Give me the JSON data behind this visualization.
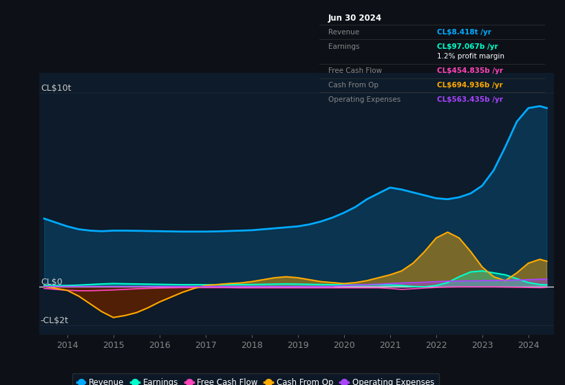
{
  "bg_color": "#0d1117",
  "plot_bg_color": "#0d1b2a",
  "ylabel_top": "CL$10t",
  "ylabel_zero": "CL$0",
  "ylabel_neg": "-CL$2t",
  "years": [
    2013.5,
    2013.75,
    2014.0,
    2014.25,
    2014.5,
    2014.75,
    2015.0,
    2015.25,
    2015.5,
    2015.75,
    2016.0,
    2016.25,
    2016.5,
    2016.75,
    2017.0,
    2017.25,
    2017.5,
    2017.75,
    2018.0,
    2018.25,
    2018.5,
    2018.75,
    2019.0,
    2019.25,
    2019.5,
    2019.75,
    2020.0,
    2020.25,
    2020.5,
    2020.75,
    2021.0,
    2021.25,
    2021.5,
    2021.75,
    2022.0,
    2022.25,
    2022.5,
    2022.75,
    2023.0,
    2023.25,
    2023.5,
    2023.75,
    2024.0,
    2024.25,
    2024.4
  ],
  "revenue": [
    3.5,
    3.3,
    3.1,
    2.95,
    2.88,
    2.85,
    2.88,
    2.88,
    2.87,
    2.86,
    2.85,
    2.84,
    2.83,
    2.83,
    2.83,
    2.84,
    2.86,
    2.88,
    2.9,
    2.95,
    3.0,
    3.05,
    3.1,
    3.2,
    3.35,
    3.55,
    3.8,
    4.1,
    4.5,
    4.8,
    5.1,
    5.0,
    4.85,
    4.7,
    4.55,
    4.5,
    4.6,
    4.8,
    5.2,
    6.0,
    7.2,
    8.5,
    9.2,
    9.3,
    9.2
  ],
  "earnings": [
    0.05,
    0.05,
    0.05,
    0.07,
    0.1,
    0.13,
    0.15,
    0.14,
    0.13,
    0.12,
    0.11,
    0.1,
    0.09,
    0.09,
    0.09,
    0.09,
    0.09,
    0.1,
    0.1,
    0.11,
    0.12,
    0.13,
    0.12,
    0.11,
    0.1,
    0.09,
    0.08,
    0.08,
    0.09,
    0.1,
    0.08,
    0.05,
    0.0,
    -0.02,
    0.05,
    0.2,
    0.5,
    0.75,
    0.8,
    0.7,
    0.6,
    0.4,
    0.2,
    0.1,
    0.08
  ],
  "free_cash_flow": [
    -0.1,
    -0.15,
    -0.2,
    -0.22,
    -0.22,
    -0.2,
    -0.18,
    -0.15,
    -0.12,
    -0.1,
    -0.08,
    -0.07,
    -0.06,
    -0.06,
    -0.06,
    -0.06,
    -0.06,
    -0.07,
    -0.07,
    -0.07,
    -0.07,
    -0.07,
    -0.07,
    -0.07,
    -0.07,
    -0.07,
    -0.07,
    -0.07,
    -0.07,
    -0.07,
    -0.1,
    -0.15,
    -0.12,
    -0.08,
    -0.05,
    -0.03,
    -0.02,
    -0.02,
    -0.02,
    -0.02,
    -0.03,
    -0.04,
    -0.05,
    -0.06,
    -0.05
  ],
  "cash_from_op": [
    0.0,
    -0.1,
    -0.2,
    -0.5,
    -0.9,
    -1.3,
    -1.6,
    -1.5,
    -1.35,
    -1.1,
    -0.8,
    -0.55,
    -0.3,
    -0.1,
    0.05,
    0.1,
    0.15,
    0.18,
    0.25,
    0.35,
    0.45,
    0.5,
    0.45,
    0.35,
    0.25,
    0.2,
    0.15,
    0.2,
    0.3,
    0.45,
    0.6,
    0.8,
    1.2,
    1.8,
    2.5,
    2.8,
    2.5,
    1.8,
    1.0,
    0.5,
    0.3,
    0.7,
    1.2,
    1.4,
    1.3
  ],
  "operating_expenses": [
    0.0,
    0.0,
    0.0,
    0.0,
    0.0,
    0.0,
    0.0,
    0.0,
    0.0,
    0.0,
    0.0,
    0.0,
    0.0,
    0.0,
    0.0,
    0.0,
    0.0,
    0.0,
    0.0,
    0.0,
    0.0,
    0.0,
    0.0,
    0.0,
    0.0,
    0.0,
    0.05,
    0.08,
    0.1,
    0.12,
    0.15,
    0.18,
    0.2,
    0.22,
    0.25,
    0.27,
    0.28,
    0.29,
    0.3,
    0.31,
    0.32,
    0.33,
    0.35,
    0.37,
    0.38
  ],
  "revenue_color": "#00aaff",
  "earnings_color": "#00ffcc",
  "free_cash_flow_color": "#ff44bb",
  "cash_from_op_color": "#ffaa00",
  "operating_expenses_color": "#aa44ff",
  "grid_color": "#1e2d3d",
  "zero_line_color": "#ffffff",
  "info_box": {
    "date": "Jun 30 2024",
    "revenue_label": "Revenue",
    "revenue_value": "CL$8.418t /yr",
    "revenue_color": "#00aaff",
    "earnings_label": "Earnings",
    "earnings_value": "CL$97.067b /yr",
    "earnings_color": "#00ffcc",
    "profit_margin": "1.2% profit margin",
    "fcf_label": "Free Cash Flow",
    "fcf_value": "CL$454.835b /yr",
    "fcf_color": "#ff44bb",
    "cashop_label": "Cash From Op",
    "cashop_value": "CL$694.936b /yr",
    "cashop_color": "#ffaa00",
    "opex_label": "Operating Expenses",
    "opex_value": "CL$563.435b /yr",
    "opex_color": "#aa44ff"
  },
  "legend": [
    {
      "label": "Revenue",
      "color": "#00aaff"
    },
    {
      "label": "Earnings",
      "color": "#00ffcc"
    },
    {
      "label": "Free Cash Flow",
      "color": "#ff44bb"
    },
    {
      "label": "Cash From Op",
      "color": "#ffaa00"
    },
    {
      "label": "Operating Expenses",
      "color": "#aa44ff"
    }
  ],
  "xticks": [
    2014,
    2015,
    2016,
    2017,
    2018,
    2019,
    2020,
    2021,
    2022,
    2023,
    2024
  ],
  "ylim": [
    -2.5,
    11.0
  ],
  "xlim": [
    2013.4,
    2024.55
  ]
}
